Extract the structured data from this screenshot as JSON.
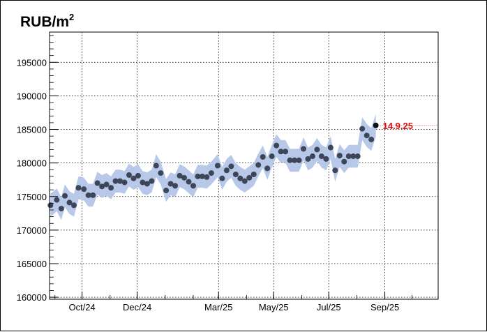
{
  "chart_data": {
    "type": "scatter",
    "title": "RUB/m",
    "title_superscript": "2",
    "xlabel": "",
    "ylabel": "",
    "x_range": [
      "2024-08-26",
      "2025-10-30"
    ],
    "ylim": [
      159700,
      199500
    ],
    "y_ticks": [
      160000,
      165000,
      170000,
      175000,
      180000,
      185000,
      190000,
      195000
    ],
    "x_ticks": [
      {
        "label": "Oct/24",
        "date": "2024-10-01"
      },
      {
        "label": "Dec/24",
        "date": "2024-12-01"
      },
      {
        "label": "Mar/25",
        "date": "2025-03-01"
      },
      {
        "label": "May/25",
        "date": "2025-05-01"
      },
      {
        "label": "Jul/25",
        "date": "2025-07-01"
      },
      {
        "label": "Sep/25",
        "date": "2025-09-01"
      }
    ],
    "grid": true,
    "band_color": "#b7c8e8",
    "point_color": "#3d4658",
    "last_point_color": "#111111",
    "annotation_color": "#dd1111",
    "series": [
      {
        "points": [
          [
            "2024-08-27",
            173700
          ],
          [
            "2024-09-03",
            174500
          ],
          [
            "2024-09-08",
            173200
          ],
          [
            "2024-09-12",
            175100
          ],
          [
            "2024-09-17",
            174100
          ],
          [
            "2024-09-22",
            173700
          ],
          [
            "2024-09-27",
            176300
          ],
          [
            "2024-10-03",
            176100
          ],
          [
            "2024-10-08",
            175200
          ],
          [
            "2024-10-13",
            175200
          ],
          [
            "2024-10-18",
            177000
          ],
          [
            "2024-10-23",
            176500
          ],
          [
            "2024-10-28",
            176800
          ],
          [
            "2024-11-02",
            176300
          ],
          [
            "2024-11-07",
            177300
          ],
          [
            "2024-11-12",
            177300
          ],
          [
            "2024-11-17",
            177100
          ],
          [
            "2024-11-22",
            178200
          ],
          [
            "2024-11-27",
            177700
          ],
          [
            "2024-12-02",
            178100
          ],
          [
            "2024-12-07",
            177100
          ],
          [
            "2024-12-12",
            176900
          ],
          [
            "2024-12-17",
            177300
          ],
          [
            "2024-12-22",
            179600
          ],
          [
            "2024-12-27",
            178500
          ],
          [
            "2025-01-02",
            175900
          ],
          [
            "2025-01-07",
            176900
          ],
          [
            "2025-01-12",
            176600
          ],
          [
            "2025-01-17",
            178100
          ],
          [
            "2025-01-22",
            177800
          ],
          [
            "2025-01-27",
            177200
          ],
          [
            "2025-02-01",
            176600
          ],
          [
            "2025-02-06",
            178000
          ],
          [
            "2025-02-11",
            178000
          ],
          [
            "2025-02-16",
            177900
          ],
          [
            "2025-02-21",
            178500
          ],
          [
            "2025-02-28",
            179600
          ],
          [
            "2025-03-05",
            177700
          ],
          [
            "2025-03-10",
            178900
          ],
          [
            "2025-03-15",
            179500
          ],
          [
            "2025-03-20",
            178300
          ],
          [
            "2025-03-25",
            177700
          ],
          [
            "2025-03-30",
            177300
          ],
          [
            "2025-04-04",
            177800
          ],
          [
            "2025-04-09",
            178300
          ],
          [
            "2025-04-14",
            179700
          ],
          [
            "2025-04-19",
            180900
          ],
          [
            "2025-04-24",
            179200
          ],
          [
            "2025-04-29",
            181000
          ],
          [
            "2025-05-04",
            182600
          ],
          [
            "2025-05-09",
            181700
          ],
          [
            "2025-05-14",
            181700
          ],
          [
            "2025-05-19",
            180400
          ],
          [
            "2025-05-24",
            180400
          ],
          [
            "2025-05-29",
            180400
          ],
          [
            "2025-06-03",
            182100
          ],
          [
            "2025-06-08",
            180600
          ],
          [
            "2025-06-13",
            181000
          ],
          [
            "2025-06-18",
            182000
          ],
          [
            "2025-06-23",
            181000
          ],
          [
            "2025-06-28",
            180600
          ],
          [
            "2025-07-03",
            182300
          ],
          [
            "2025-07-08",
            178900
          ],
          [
            "2025-07-13",
            181100
          ],
          [
            "2025-07-18",
            180200
          ],
          [
            "2025-07-23",
            181000
          ],
          [
            "2025-07-28",
            181000
          ],
          [
            "2025-08-02",
            181000
          ],
          [
            "2025-08-07",
            185100
          ],
          [
            "2025-08-12",
            184100
          ],
          [
            "2025-08-17",
            183500
          ],
          [
            "2025-08-22",
            185600
          ]
        ],
        "band_halfwidth": 1700
      }
    ],
    "annotations": [
      {
        "text": "14.9.25",
        "date": "2025-08-22",
        "value": 185600
      }
    ]
  }
}
